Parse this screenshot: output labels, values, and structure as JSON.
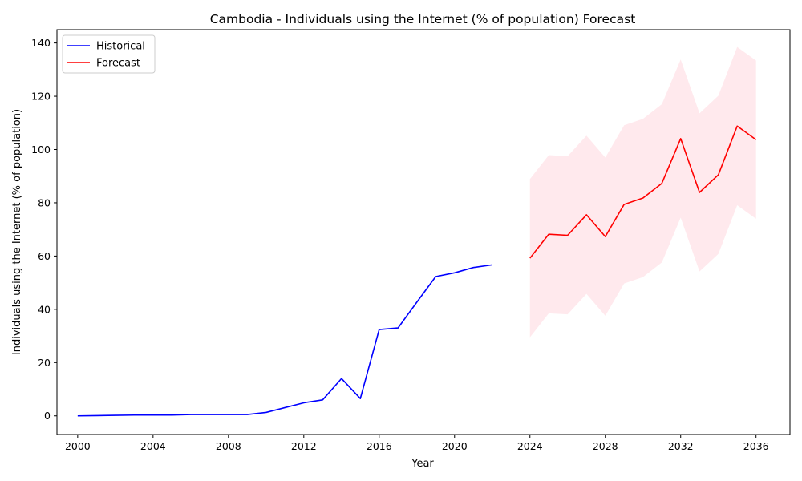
{
  "chart_data": {
    "type": "line",
    "title": "Cambodia - Individuals using the Internet (% of population) Forecast",
    "xlabel": "Year",
    "ylabel": "Individuals using the Internet (% of population)",
    "xlim": [
      1998.9,
      2037.8
    ],
    "ylim": [
      -7,
      145
    ],
    "xticks": [
      2000,
      2004,
      2008,
      2012,
      2016,
      2020,
      2024,
      2028,
      2032,
      2036
    ],
    "yticks": [
      0,
      20,
      40,
      60,
      80,
      100,
      120,
      140
    ],
    "grid": false,
    "legend": "upper-left",
    "series": [
      {
        "name": "Historical",
        "color": "#0000ff",
        "x": [
          2000,
          2001,
          2002,
          2003,
          2004,
          2005,
          2006,
          2007,
          2008,
          2009,
          2010,
          2011,
          2012,
          2013,
          2014,
          2015,
          2016,
          2017,
          2018,
          2019,
          2020,
          2021,
          2022
        ],
        "y": [
          0.0,
          0.1,
          0.2,
          0.3,
          0.3,
          0.3,
          0.5,
          0.5,
          0.5,
          0.5,
          1.3,
          3.1,
          4.9,
          6.0,
          14.0,
          6.5,
          32.4,
          33.0,
          42.7,
          52.3,
          53.7,
          55.7,
          56.7
        ]
      },
      {
        "name": "Forecast",
        "color": "#ff0000",
        "x": [
          2024,
          2025,
          2026,
          2027,
          2028,
          2029,
          2030,
          2031,
          2032,
          2033,
          2034,
          2035,
          2036
        ],
        "y": [
          59.2,
          68.2,
          67.8,
          75.5,
          67.3,
          79.4,
          81.8,
          87.3,
          104.1,
          83.9,
          90.5,
          108.8,
          103.7
        ],
        "lower": [
          29.5,
          38.5,
          38.1,
          45.8,
          37.6,
          49.7,
          52.1,
          57.6,
          74.4,
          54.2,
          60.8,
          79.1,
          74.0
        ],
        "upper": [
          88.9,
          97.9,
          97.5,
          105.2,
          97.0,
          109.1,
          111.5,
          117.0,
          133.8,
          113.6,
          120.2,
          138.5,
          133.4
        ],
        "band_color": "#ffc0cb"
      }
    ]
  }
}
